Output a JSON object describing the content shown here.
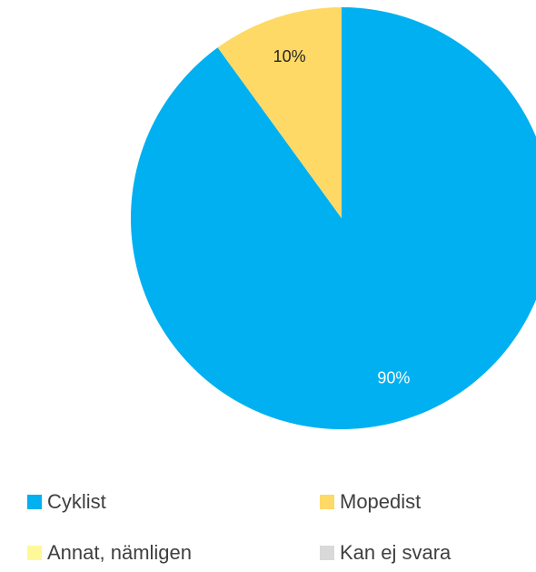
{
  "chart_data": {
    "type": "pie",
    "categories": [
      "Cyklist",
      "Mopedist",
      "Annat, nämligen",
      "Kan ej svara"
    ],
    "values": [
      90,
      10,
      0,
      0
    ],
    "value_labels": [
      "90%",
      "10%",
      null,
      null
    ],
    "colors": [
      "#00b0f0",
      "#ffd966",
      "#fff899",
      "#d9d9d9"
    ],
    "label_colors": [
      "#ffffff",
      "#262626",
      "#262626",
      "#262626"
    ]
  }
}
